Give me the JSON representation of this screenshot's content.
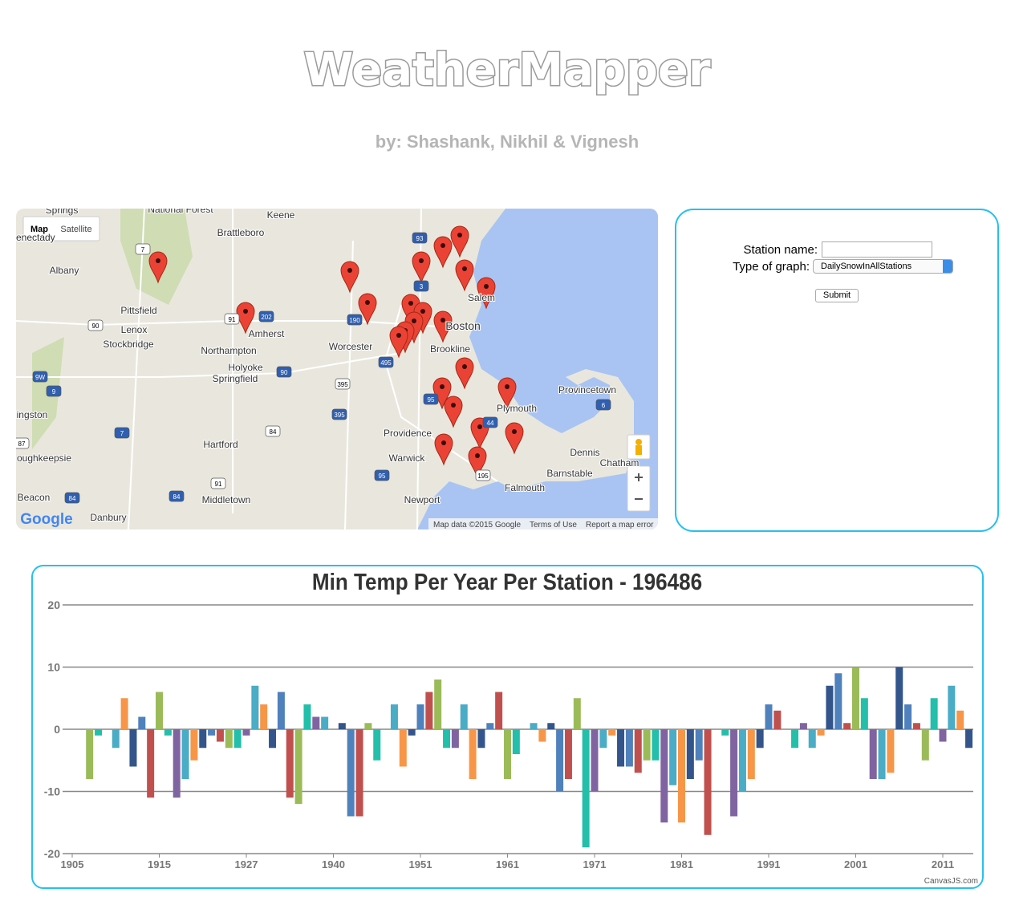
{
  "header": {
    "title": "WeatherMapper",
    "subtitle": "by: Shashank, Nikhil & Vignesh"
  },
  "map": {
    "buttons": [
      "Map",
      "Satellite"
    ],
    "places": [
      "Springs",
      "National Forest",
      "Keene",
      "Brattleboro",
      "chenectady",
      "Albany",
      "Pittsfield",
      "Lenox",
      "Stockbridge",
      "Amherst",
      "Northampton",
      "Holyoke",
      "Springfield",
      "Worcester",
      "Boston",
      "Brookline",
      "Salem",
      "Provincetown",
      "Plymouth",
      "Providence",
      "Warwick",
      "Hartford",
      "Middletown",
      "Danbury",
      "Beacon",
      "oughkeepsie",
      "ingston",
      "Newport",
      "Barnstable",
      "Dennis",
      "Chatham",
      "Falmouth"
    ],
    "road_shields": [
      "7",
      "93",
      "202",
      "91",
      "190",
      "3",
      "90",
      "90",
      "495",
      "395",
      "395",
      "95",
      "84",
      "84",
      "84",
      "195",
      "9W",
      "9",
      "87",
      "6",
      "44",
      "91",
      "7",
      "95"
    ],
    "logo": "Google",
    "attribution": "Map data ©2015 Google",
    "terms": "Terms of Use",
    "report": "Report a map error"
  },
  "form": {
    "station_label": "Station name:",
    "graph_label": "Type of graph:",
    "graph_option": "DailySnowInAllStations",
    "submit": "Submit"
  },
  "chart_data": {
    "type": "bar",
    "title": "Min Temp Per Year Per Station - 196486",
    "credit": "CanvasJS.com",
    "categories": [
      "1905",
      null,
      null,
      null,
      null,
      null,
      null,
      null,
      null,
      null,
      "1915",
      null,
      null,
      null,
      null,
      null,
      null,
      null,
      null,
      null,
      "1927",
      null,
      null,
      null,
      null,
      null,
      null,
      null,
      null,
      null,
      "1940",
      null,
      null,
      null,
      null,
      null,
      null,
      null,
      null,
      null,
      "1951",
      null,
      null,
      null,
      null,
      null,
      null,
      null,
      null,
      null,
      "1961",
      null,
      null,
      null,
      null,
      null,
      null,
      null,
      null,
      null,
      "1971",
      null,
      null,
      null,
      null,
      null,
      null,
      null,
      null,
      null,
      "1981",
      null,
      null,
      null,
      null,
      null,
      null,
      null,
      null,
      null,
      "1991",
      null,
      null,
      null,
      null,
      null,
      null,
      null,
      null,
      null,
      "2001",
      null,
      null,
      null,
      null,
      null,
      null,
      null,
      null,
      null,
      "2011",
      null,
      null,
      null
    ],
    "values": [
      null,
      null,
      -8,
      -1,
      null,
      -3,
      5,
      -6,
      2,
      -11,
      6,
      -1,
      -11,
      -8,
      -5,
      -3,
      -1,
      -2,
      -3,
      -3,
      -1,
      7,
      4,
      -3,
      6,
      -11,
      -12,
      4,
      2,
      2,
      null,
      1,
      -14,
      -14,
      1,
      -5,
      null,
      4,
      -6,
      -1,
      4,
      6,
      8,
      -3,
      -3,
      4,
      -8,
      -3,
      1,
      6,
      -8,
      -4,
      null,
      1,
      -2,
      1,
      -10,
      -8,
      5,
      -19,
      -10,
      -3,
      -1,
      -6,
      -6,
      -7,
      -5,
      -5,
      -15,
      -9,
      -15,
      -8,
      -5,
      -17,
      null,
      -1,
      -14,
      -10,
      -8,
      -3,
      4,
      3,
      null,
      -3,
      1,
      -3,
      -1,
      7,
      9,
      1,
      10,
      5,
      -8,
      -8,
      -7,
      10,
      4,
      1,
      -5,
      5,
      -2,
      7,
      3,
      -3
    ],
    "colors": [
      "#4F81BC",
      "#C0504E",
      "#9BBB58",
      "#23BFAA",
      "#8064A1",
      "#4AACC5",
      "#F79647",
      "#33558B"
    ],
    "ylim": [
      -20,
      20
    ],
    "yticks": [
      -20,
      -10,
      0,
      10,
      20
    ],
    "grid": true
  }
}
